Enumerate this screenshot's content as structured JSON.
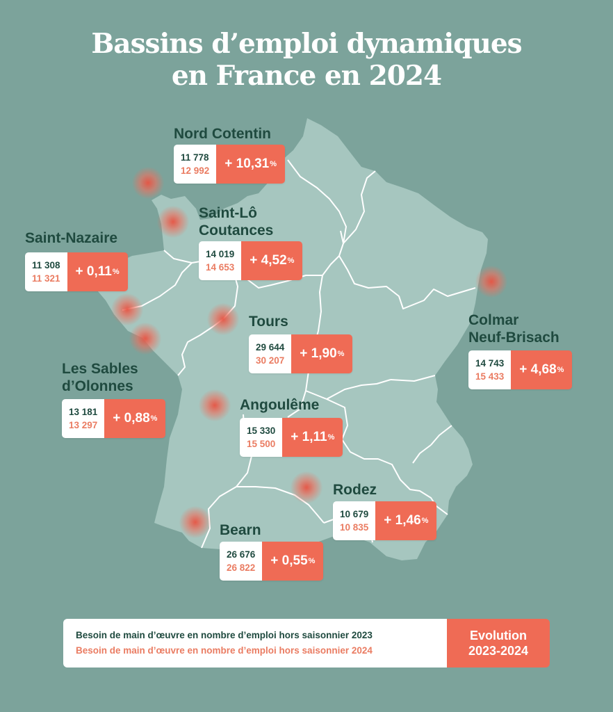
{
  "title": {
    "line1": "Bassins d’emploi dynamiques",
    "line2": "en France en 2024"
  },
  "colors": {
    "background": "#7ca39b",
    "land": "#a6c6bf",
    "heading": "#1f4a3f",
    "value_2024": "#ea7c62",
    "evolution": "#ef6b55",
    "marker": "#e85443"
  },
  "regions": [
    {
      "name": "Nord Cotentin",
      "v2023": "11 778",
      "v2024": "12 992",
      "evolution": "+ 10,31",
      "unit": "%"
    },
    {
      "name": "Saint-Lô",
      "name2": "Coutances",
      "v2023": "14 019",
      "v2024": "14 653",
      "evolution": "+ 4,52",
      "unit": "%"
    },
    {
      "name": "Saint-Nazaire",
      "v2023": "11 308",
      "v2024": "11 321",
      "evolution": "+ 0,11",
      "unit": "%"
    },
    {
      "name": "Tours",
      "v2023": "29 644",
      "v2024": "30 207",
      "evolution": "+ 1,90",
      "unit": "%"
    },
    {
      "name": "Colmar",
      "name2": "Neuf-Brisach",
      "v2023": "14 743",
      "v2024": "15 433",
      "evolution": "+ 4,68",
      "unit": "%"
    },
    {
      "name": "Les Sables",
      "name2": "d’Olonnes",
      "v2023": "13 181",
      "v2024": "13 297",
      "evolution": "+ 0,88",
      "unit": "%"
    },
    {
      "name": "Angoulême",
      "v2023": "15 330",
      "v2024": "15 500",
      "evolution": "+ 1,11",
      "unit": "%"
    },
    {
      "name": "Rodez",
      "v2023": "10 679",
      "v2024": "10 835",
      "evolution": "+ 1,46",
      "unit": "%"
    },
    {
      "name": "Bearn",
      "v2023": "26 676",
      "v2024": "26 822",
      "evolution": "+ 0,55",
      "unit": "%"
    }
  ],
  "legend": {
    "line2023": "Besoin de main d’œuvre en nombre d’emploi hors saisonnier 2023",
    "line2024": "Besoin de main d’œuvre en nombre d’emploi hors saisonnier 2024",
    "evolution1": "Evolution",
    "evolution2": "2023-2024"
  }
}
